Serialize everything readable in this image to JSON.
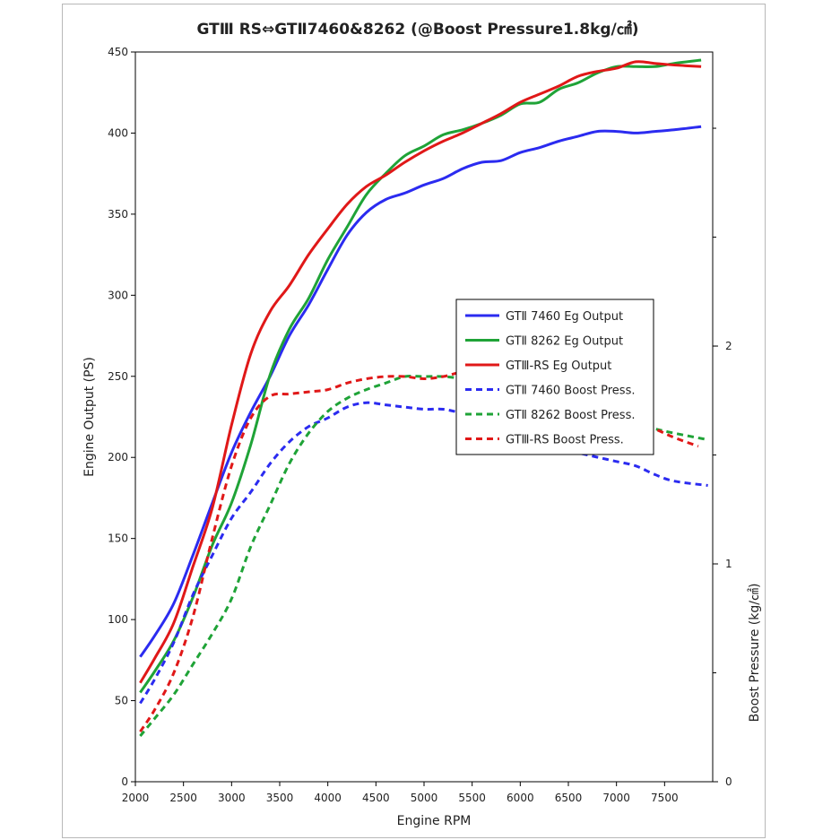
{
  "chart_data": {
    "type": "line",
    "title": "GTⅢ RS⇔GTⅡ7460&8262 (@Boost Pressure1.8kg/㎠)",
    "xlabel": "Engine RPM",
    "ylabel": "Engine Output (PS)",
    "y2label": "Boost Pressure (kg/㎠)",
    "xlim": [
      2000,
      8000
    ],
    "ylim": [
      0,
      450
    ],
    "y2lim": [
      0,
      3.35
    ],
    "x_ticks": [
      2000,
      2500,
      3000,
      3500,
      4000,
      4500,
      5000,
      5500,
      6000,
      6500,
      7000,
      7500
    ],
    "y_ticks": [
      0,
      50,
      100,
      150,
      200,
      250,
      300,
      350,
      400,
      450
    ],
    "y2_ticks": [
      0,
      1,
      2
    ],
    "grid": false,
    "legend_position": "center-right",
    "series": [
      {
        "name": "GTⅡ 7460 Eg Output",
        "axis": "left",
        "dash": false,
        "color": "#2b2bf0",
        "x": [
          2050,
          2200,
          2400,
          2600,
          2800,
          3000,
          3200,
          3400,
          3600,
          3800,
          4000,
          4200,
          4400,
          4600,
          4800,
          5000,
          5200,
          5400,
          5600,
          5800,
          6000,
          6200,
          6400,
          6600,
          6800,
          7000,
          7200,
          7400,
          7600,
          7880
        ],
        "y": [
          77,
          90,
          110,
          140,
          172,
          203,
          228,
          250,
          275,
          294,
          316,
          337,
          351,
          359,
          363,
          368,
          372,
          378,
          382,
          383,
          388,
          391,
          395,
          398,
          401,
          401,
          400,
          401,
          402,
          404
        ]
      },
      {
        "name": "GTⅡ 8262 Eg Output",
        "axis": "left",
        "dash": false,
        "color": "#1fa337",
        "x": [
          2050,
          2200,
          2400,
          2600,
          2800,
          3000,
          3200,
          3400,
          3600,
          3800,
          4000,
          4200,
          4400,
          4600,
          4800,
          5000,
          5200,
          5400,
          5600,
          5800,
          6000,
          6200,
          6400,
          6600,
          6800,
          7000,
          7200,
          7400,
          7600,
          7880
        ],
        "y": [
          55,
          68,
          87,
          114,
          146,
          172,
          208,
          251,
          279,
          298,
          322,
          342,
          362,
          375,
          386,
          392,
          399,
          402,
          406,
          411,
          418,
          419,
          427,
          431,
          437,
          441,
          441,
          441,
          443,
          445
        ]
      },
      {
        "name": "GTⅢ-RS Eg Output",
        "axis": "left",
        "dash": false,
        "color": "#e01818",
        "x": [
          2050,
          2200,
          2400,
          2600,
          2800,
          3000,
          3200,
          3400,
          3600,
          3800,
          4000,
          4200,
          4400,
          4600,
          4800,
          5000,
          5200,
          5400,
          5600,
          5800,
          6000,
          6200,
          6400,
          6600,
          6800,
          7000,
          7200,
          7400,
          7600,
          7880
        ],
        "y": [
          61,
          76,
          98,
          133,
          169,
          220,
          264,
          290,
          306,
          325,
          341,
          356,
          367,
          374,
          382,
          389,
          395,
          400,
          406,
          412,
          419,
          424,
          429,
          435,
          438,
          440,
          444,
          443,
          442,
          441
        ]
      },
      {
        "name": "GTⅡ 7460 Boost Press.",
        "axis": "right",
        "dash": true,
        "color": "#2b2bf0",
        "x": [
          2050,
          2200,
          2400,
          2600,
          2800,
          3000,
          3200,
          3400,
          3600,
          3800,
          4000,
          4200,
          4400,
          4600,
          4800,
          5000,
          5200,
          5400,
          5600,
          5800,
          6000,
          6200,
          6400,
          6600,
          6800,
          7000,
          7200,
          7400,
          7600,
          7950
        ],
        "y": [
          0.36,
          0.47,
          0.64,
          0.86,
          1.04,
          1.21,
          1.33,
          1.46,
          1.56,
          1.63,
          1.67,
          1.72,
          1.74,
          1.73,
          1.72,
          1.71,
          1.71,
          1.69,
          1.66,
          1.62,
          1.59,
          1.56,
          1.53,
          1.51,
          1.49,
          1.47,
          1.45,
          1.41,
          1.38,
          1.36
        ]
      },
      {
        "name": "GTⅡ 8262 Boost Press.",
        "axis": "right",
        "dash": true,
        "color": "#1fa337",
        "x": [
          2050,
          2200,
          2400,
          2600,
          2800,
          3000,
          3200,
          3400,
          3600,
          3800,
          4000,
          4200,
          4400,
          4600,
          4800,
          5000,
          5200,
          5400,
          5600,
          5800,
          6000,
          6200,
          6400,
          6600,
          6800,
          7000,
          7200,
          7400,
          7600,
          7950
        ],
        "y": [
          0.21,
          0.29,
          0.4,
          0.54,
          0.68,
          0.84,
          1.08,
          1.27,
          1.46,
          1.6,
          1.7,
          1.76,
          1.8,
          1.83,
          1.86,
          1.86,
          1.86,
          1.85,
          1.83,
          1.81,
          1.78,
          1.76,
          1.73,
          1.7,
          1.68,
          1.66,
          1.64,
          1.62,
          1.6,
          1.57
        ]
      },
      {
        "name": "GTⅢ-RS Boost Press.",
        "axis": "right",
        "dash": true,
        "color": "#e01818",
        "x": [
          2050,
          2200,
          2400,
          2600,
          2800,
          3000,
          3200,
          3400,
          3600,
          3800,
          4000,
          4200,
          4400,
          4600,
          4800,
          5000,
          5200,
          5400,
          5600,
          5800,
          6000,
          6200,
          6400,
          6600,
          6800,
          7000,
          7200,
          7400,
          7600,
          7850
        ],
        "y": [
          0.23,
          0.33,
          0.5,
          0.76,
          1.12,
          1.45,
          1.67,
          1.77,
          1.78,
          1.79,
          1.8,
          1.83,
          1.85,
          1.86,
          1.86,
          1.85,
          1.86,
          1.88,
          1.87,
          1.85,
          1.83,
          1.81,
          1.78,
          1.75,
          1.72,
          1.69,
          1.66,
          1.62,
          1.58,
          1.54
        ]
      }
    ]
  }
}
